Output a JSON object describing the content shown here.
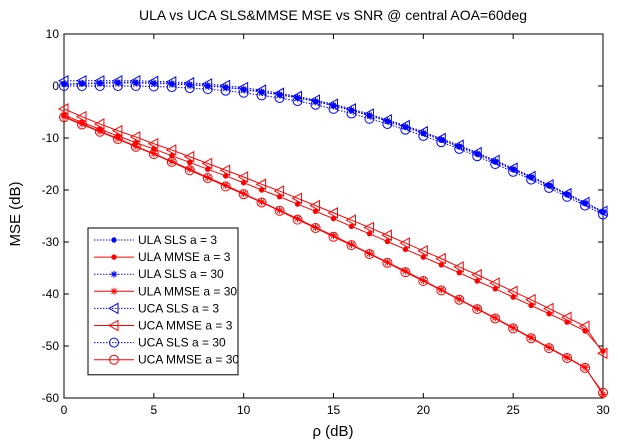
{
  "chart_data": {
    "type": "line",
    "title": "ULA vs UCA SLS&MMSE MSE vs SNR @ central AOA=60deg",
    "xlabel": "ρ (dB)",
    "ylabel": "MSE (dB)",
    "xlim": [
      0,
      30
    ],
    "ylim": [
      -60,
      10
    ],
    "xticks": [
      0,
      5,
      10,
      15,
      20,
      25,
      30
    ],
    "yticks": [
      10,
      0,
      -10,
      -20,
      -30,
      -40,
      -50,
      -60
    ],
    "grid": false,
    "legend_position": "lower-left",
    "x": [
      0,
      1,
      2,
      3,
      4,
      5,
      6,
      7,
      8,
      9,
      10,
      11,
      12,
      13,
      14,
      15,
      16,
      17,
      18,
      19,
      20,
      21,
      22,
      23,
      24,
      25,
      26,
      27,
      28,
      29,
      30
    ],
    "colors": {
      "blue": "#0000ff",
      "red": "#ff0000"
    },
    "series": [
      {
        "name": "ULA SLS a = 3",
        "color": "#0000ff",
        "line": "dotted",
        "marker": "dot",
        "values": [
          0.3,
          0.4,
          0.5,
          0.6,
          0.6,
          0.5,
          0.4,
          0.2,
          0.0,
          -0.3,
          -0.7,
          -1.2,
          -1.7,
          -2.3,
          -3.0,
          -3.8,
          -4.7,
          -5.7,
          -6.8,
          -7.9,
          -9.1,
          -10.4,
          -11.7,
          -13.1,
          -14.6,
          -16.1,
          -17.6,
          -19.2,
          -20.9,
          -22.6,
          -24.3
        ]
      },
      {
        "name": "ULA MMSE a = 3",
        "color": "#ff0000",
        "line": "solid",
        "marker": "dot",
        "values": [
          -5.6,
          -7.0,
          -8.3,
          -9.6,
          -10.9,
          -12.1,
          -13.4,
          -14.7,
          -16.0,
          -17.3,
          -18.6,
          -20.0,
          -21.3,
          -22.7,
          -24.1,
          -25.5,
          -27.0,
          -28.4,
          -29.9,
          -31.4,
          -32.9,
          -34.4,
          -35.9,
          -37.5,
          -39.0,
          -40.6,
          -42.2,
          -43.8,
          -45.4,
          -47.1,
          -51.0
        ]
      },
      {
        "name": "ULA SLS a = 30",
        "color": "#0000ff",
        "line": "dotted",
        "marker": "asterisk",
        "values": [
          0.4,
          0.5,
          0.6,
          0.7,
          0.7,
          0.6,
          0.5,
          0.3,
          0.1,
          -0.2,
          -0.6,
          -1.1,
          -1.6,
          -2.2,
          -2.9,
          -3.7,
          -4.6,
          -5.6,
          -6.7,
          -7.8,
          -9.0,
          -10.3,
          -11.6,
          -13.0,
          -14.5,
          -16.0,
          -17.5,
          -19.1,
          -20.8,
          -22.5,
          -24.2
        ]
      },
      {
        "name": "ULA MMSE a = 30",
        "color": "#ff0000",
        "line": "solid",
        "marker": "asterisk",
        "values": [
          -5.9,
          -7.3,
          -8.7,
          -10.1,
          -11.6,
          -13.0,
          -14.5,
          -16.0,
          -17.6,
          -19.1,
          -20.7,
          -22.3,
          -23.9,
          -25.5,
          -27.2,
          -28.8,
          -30.5,
          -32.2,
          -33.9,
          -35.6,
          -37.4,
          -39.2,
          -41.0,
          -42.8,
          -44.6,
          -46.5,
          -48.4,
          -50.3,
          -52.2,
          -54.1,
          -59.3
        ]
      },
      {
        "name": "UCA SLS a = 3",
        "color": "#0000ff",
        "line": "dotted",
        "marker": "triangle-left",
        "values": [
          1.0,
          1.0,
          1.0,
          1.0,
          1.0,
          0.9,
          0.8,
          0.6,
          0.4,
          0.1,
          -0.3,
          -0.8,
          -1.4,
          -2.0,
          -2.7,
          -3.5,
          -4.4,
          -5.4,
          -6.5,
          -7.6,
          -8.8,
          -10.1,
          -11.4,
          -12.8,
          -14.3,
          -15.8,
          -17.4,
          -19.0,
          -20.7,
          -22.4,
          -24.1
        ]
      },
      {
        "name": "UCA MMSE a = 3",
        "color": "#ff0000",
        "line": "solid",
        "marker": "triangle-left",
        "values": [
          -4.4,
          -5.9,
          -7.3,
          -8.6,
          -9.8,
          -11.1,
          -12.3,
          -13.6,
          -14.9,
          -16.2,
          -17.5,
          -18.9,
          -20.2,
          -21.6,
          -23.0,
          -24.4,
          -25.8,
          -27.2,
          -28.7,
          -30.2,
          -31.7,
          -33.2,
          -34.8,
          -36.3,
          -37.9,
          -39.5,
          -41.1,
          -42.8,
          -44.5,
          -46.2,
          -51.4
        ]
      },
      {
        "name": "UCA SLS a = 30",
        "color": "#0000ff",
        "line": "dotted",
        "marker": "circle",
        "values": [
          0.0,
          0.0,
          0.0,
          0.0,
          0.0,
          -0.1,
          -0.2,
          -0.4,
          -0.6,
          -0.9,
          -1.3,
          -1.8,
          -2.3,
          -2.9,
          -3.6,
          -4.4,
          -5.3,
          -6.3,
          -7.3,
          -8.4,
          -9.6,
          -10.8,
          -12.1,
          -13.5,
          -15.0,
          -16.5,
          -18.0,
          -19.6,
          -21.3,
          -23.0,
          -24.7
        ]
      },
      {
        "name": "UCA MMSE a = 30",
        "color": "#ff0000",
        "line": "solid",
        "marker": "circle",
        "values": [
          -6.0,
          -7.4,
          -8.8,
          -10.2,
          -11.7,
          -13.1,
          -14.6,
          -16.2,
          -17.7,
          -19.3,
          -20.8,
          -22.4,
          -24.0,
          -25.7,
          -27.3,
          -29.0,
          -30.6,
          -32.3,
          -34.0,
          -35.8,
          -37.5,
          -39.3,
          -41.1,
          -42.9,
          -44.7,
          -46.6,
          -48.5,
          -50.4,
          -52.3,
          -54.2,
          -59.0
        ]
      }
    ]
  }
}
